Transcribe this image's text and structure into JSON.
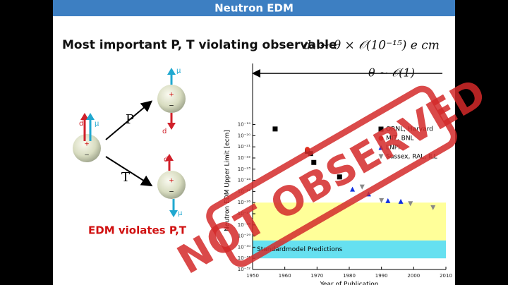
{
  "header": {
    "title": "Neutron EDM"
  },
  "heading": {
    "text": "Most important P, T violating observable",
    "formula": "dₙ ∼ θ × 𝒪(10⁻¹⁵) e cm"
  },
  "diagram": {
    "d_label": "d",
    "mu_label": "μ",
    "plus": "+",
    "minus": "−",
    "p_label": "P",
    "t_label": "T",
    "caption": "EDM violates P,T"
  },
  "stamp": "NOT OBSERVED",
  "chart_data": {
    "type": "scatter",
    "annotation": "θ ∼ 𝒪(1)",
    "ylabel": "Neutron EDM Upper Limit [ecm]",
    "xlabel": "Year of Publication",
    "log_y": true,
    "xlim": [
      1950,
      2010
    ],
    "xticks": [
      1950,
      1960,
      1970,
      1980,
      1990,
      2000,
      2010
    ],
    "ylim": [
      1e-32,
      3e-14
    ],
    "yticks": [
      {
        "value": 1e-32,
        "label": "10⁻³²"
      },
      {
        "value": 1e-31,
        "label": "10⁻³¹"
      },
      {
        "value": 1e-30,
        "label": "10⁻³⁰"
      },
      {
        "value": 1e-29,
        "label": "10⁻²⁹"
      },
      {
        "value": 1e-28,
        "label": "10⁻²⁸"
      },
      {
        "value": 1e-27,
        "label": "10⁻²⁷"
      },
      {
        "value": 1e-26,
        "label": "10⁻²⁶"
      },
      {
        "value": 1e-25,
        "label": "10⁻²⁵"
      },
      {
        "value": 1e-24,
        "label": "10⁻²⁴"
      },
      {
        "value": 1e-23,
        "label": "10⁻²³"
      },
      {
        "value": 1e-22,
        "label": "10⁻²²"
      },
      {
        "value": 1e-21,
        "label": "10⁻²¹"
      },
      {
        "value": 1e-20,
        "label": "10⁻²⁰"
      },
      {
        "value": 1e-19,
        "label": "10⁻¹⁹"
      }
    ],
    "bands": [
      {
        "from": 1e-26,
        "to": 4e-30,
        "color": "#ffff99"
      },
      {
        "from": 4e-30,
        "to": 1e-31,
        "color": "#66e0f0",
        "label": "Standardmodel Predictions"
      }
    ],
    "series": [
      {
        "name": "ORNL, Harvard",
        "color": "#000000",
        "marker": "square",
        "x": [
          1957,
          1967,
          1968,
          1969,
          1977
        ],
        "values": [
          4e-20,
          4e-22,
          2.5e-22,
          4e-23,
          2e-24
        ]
      },
      {
        "name": "MIT, BNL",
        "color": "#e03020",
        "marker": "circle",
        "x": [
          1967
        ],
        "values": [
          6e-22
        ]
      },
      {
        "name": "LNPI",
        "color": "#1030e0",
        "marker": "triangle",
        "x": [
          1981,
          1986,
          1992,
          1996
        ],
        "values": [
          1.6e-25,
          6e-26,
          1.5e-26,
          1.3e-26
        ]
      },
      {
        "name": "Sussex, RAL, ILL",
        "color": "#888888",
        "marker": "triangle-down",
        "x": [
          1984,
          1990,
          1999,
          2006
        ],
        "values": [
          2.5e-25,
          1.5e-26,
          8e-27,
          3.5e-27
        ]
      }
    ]
  }
}
